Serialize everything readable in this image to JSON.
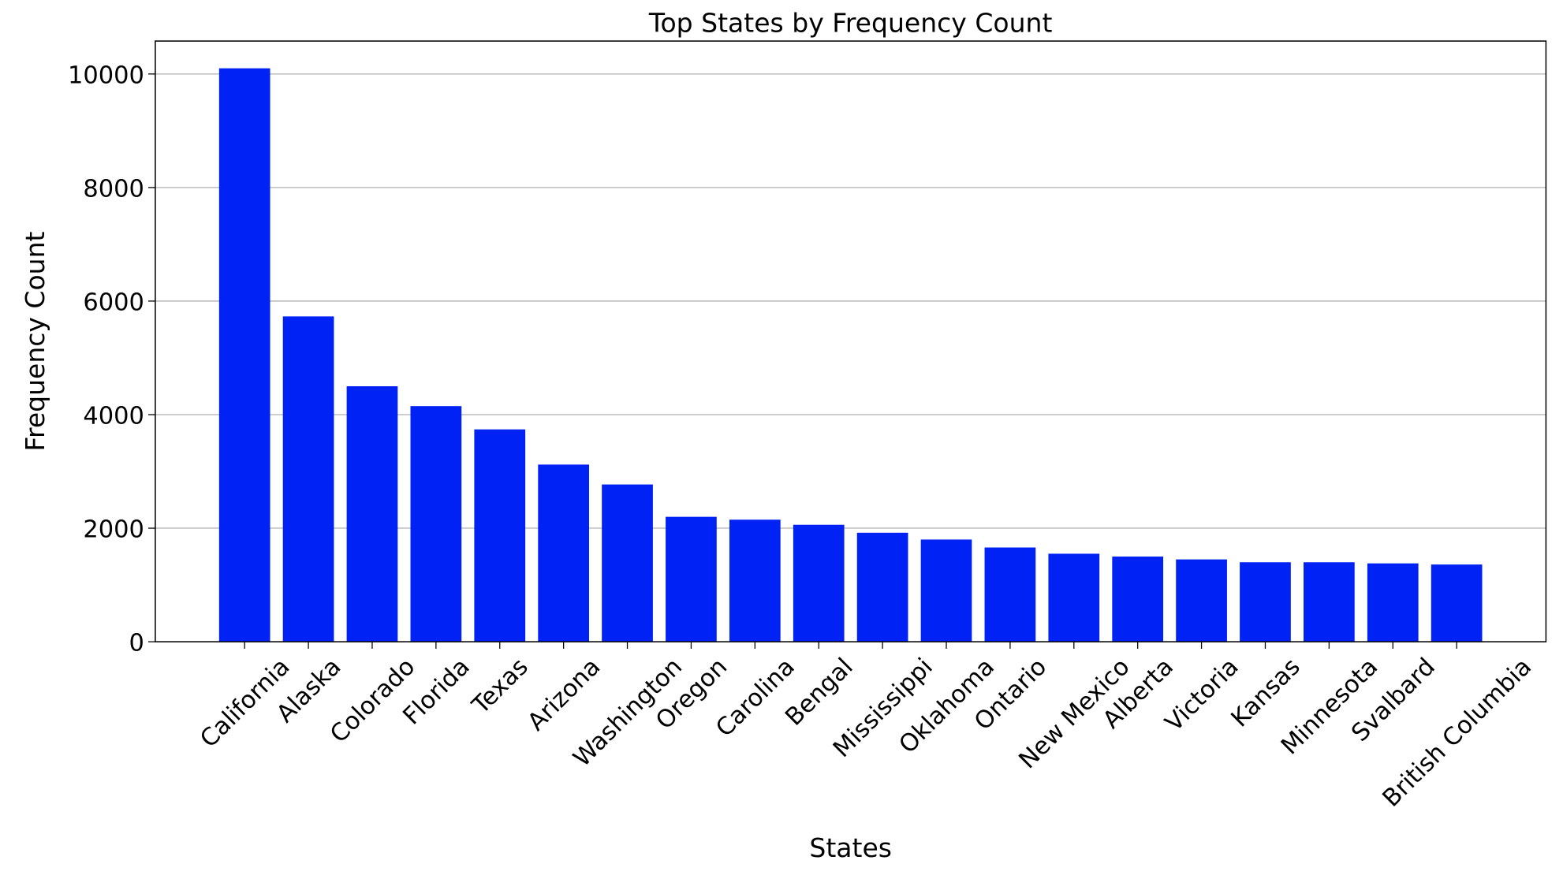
{
  "chart_data": {
    "type": "bar",
    "title": "Top States by Frequency Count",
    "xlabel": "States",
    "ylabel": "Frequency Count",
    "categories": [
      "California",
      "Alaska",
      "Colorado",
      "Florida",
      "Texas",
      "Arizona",
      "Washington",
      "Oregon",
      "Carolina",
      "Bengal",
      "Mississippi",
      "Oklahoma",
      "Ontario",
      "New Mexico",
      "Alberta",
      "Victoria",
      "Kansas",
      "Minnesota",
      "Svalbard",
      "British Columbia"
    ],
    "values": [
      10100,
      5730,
      4500,
      4150,
      3740,
      3120,
      2770,
      2200,
      2150,
      2060,
      1920,
      1800,
      1660,
      1550,
      1500,
      1450,
      1400,
      1400,
      1380,
      1360
    ],
    "yticks": [
      0,
      2000,
      4000,
      6000,
      8000,
      10000
    ],
    "ylim": [
      0,
      10580
    ],
    "grid": "y",
    "bar_color": "#0022f5"
  }
}
